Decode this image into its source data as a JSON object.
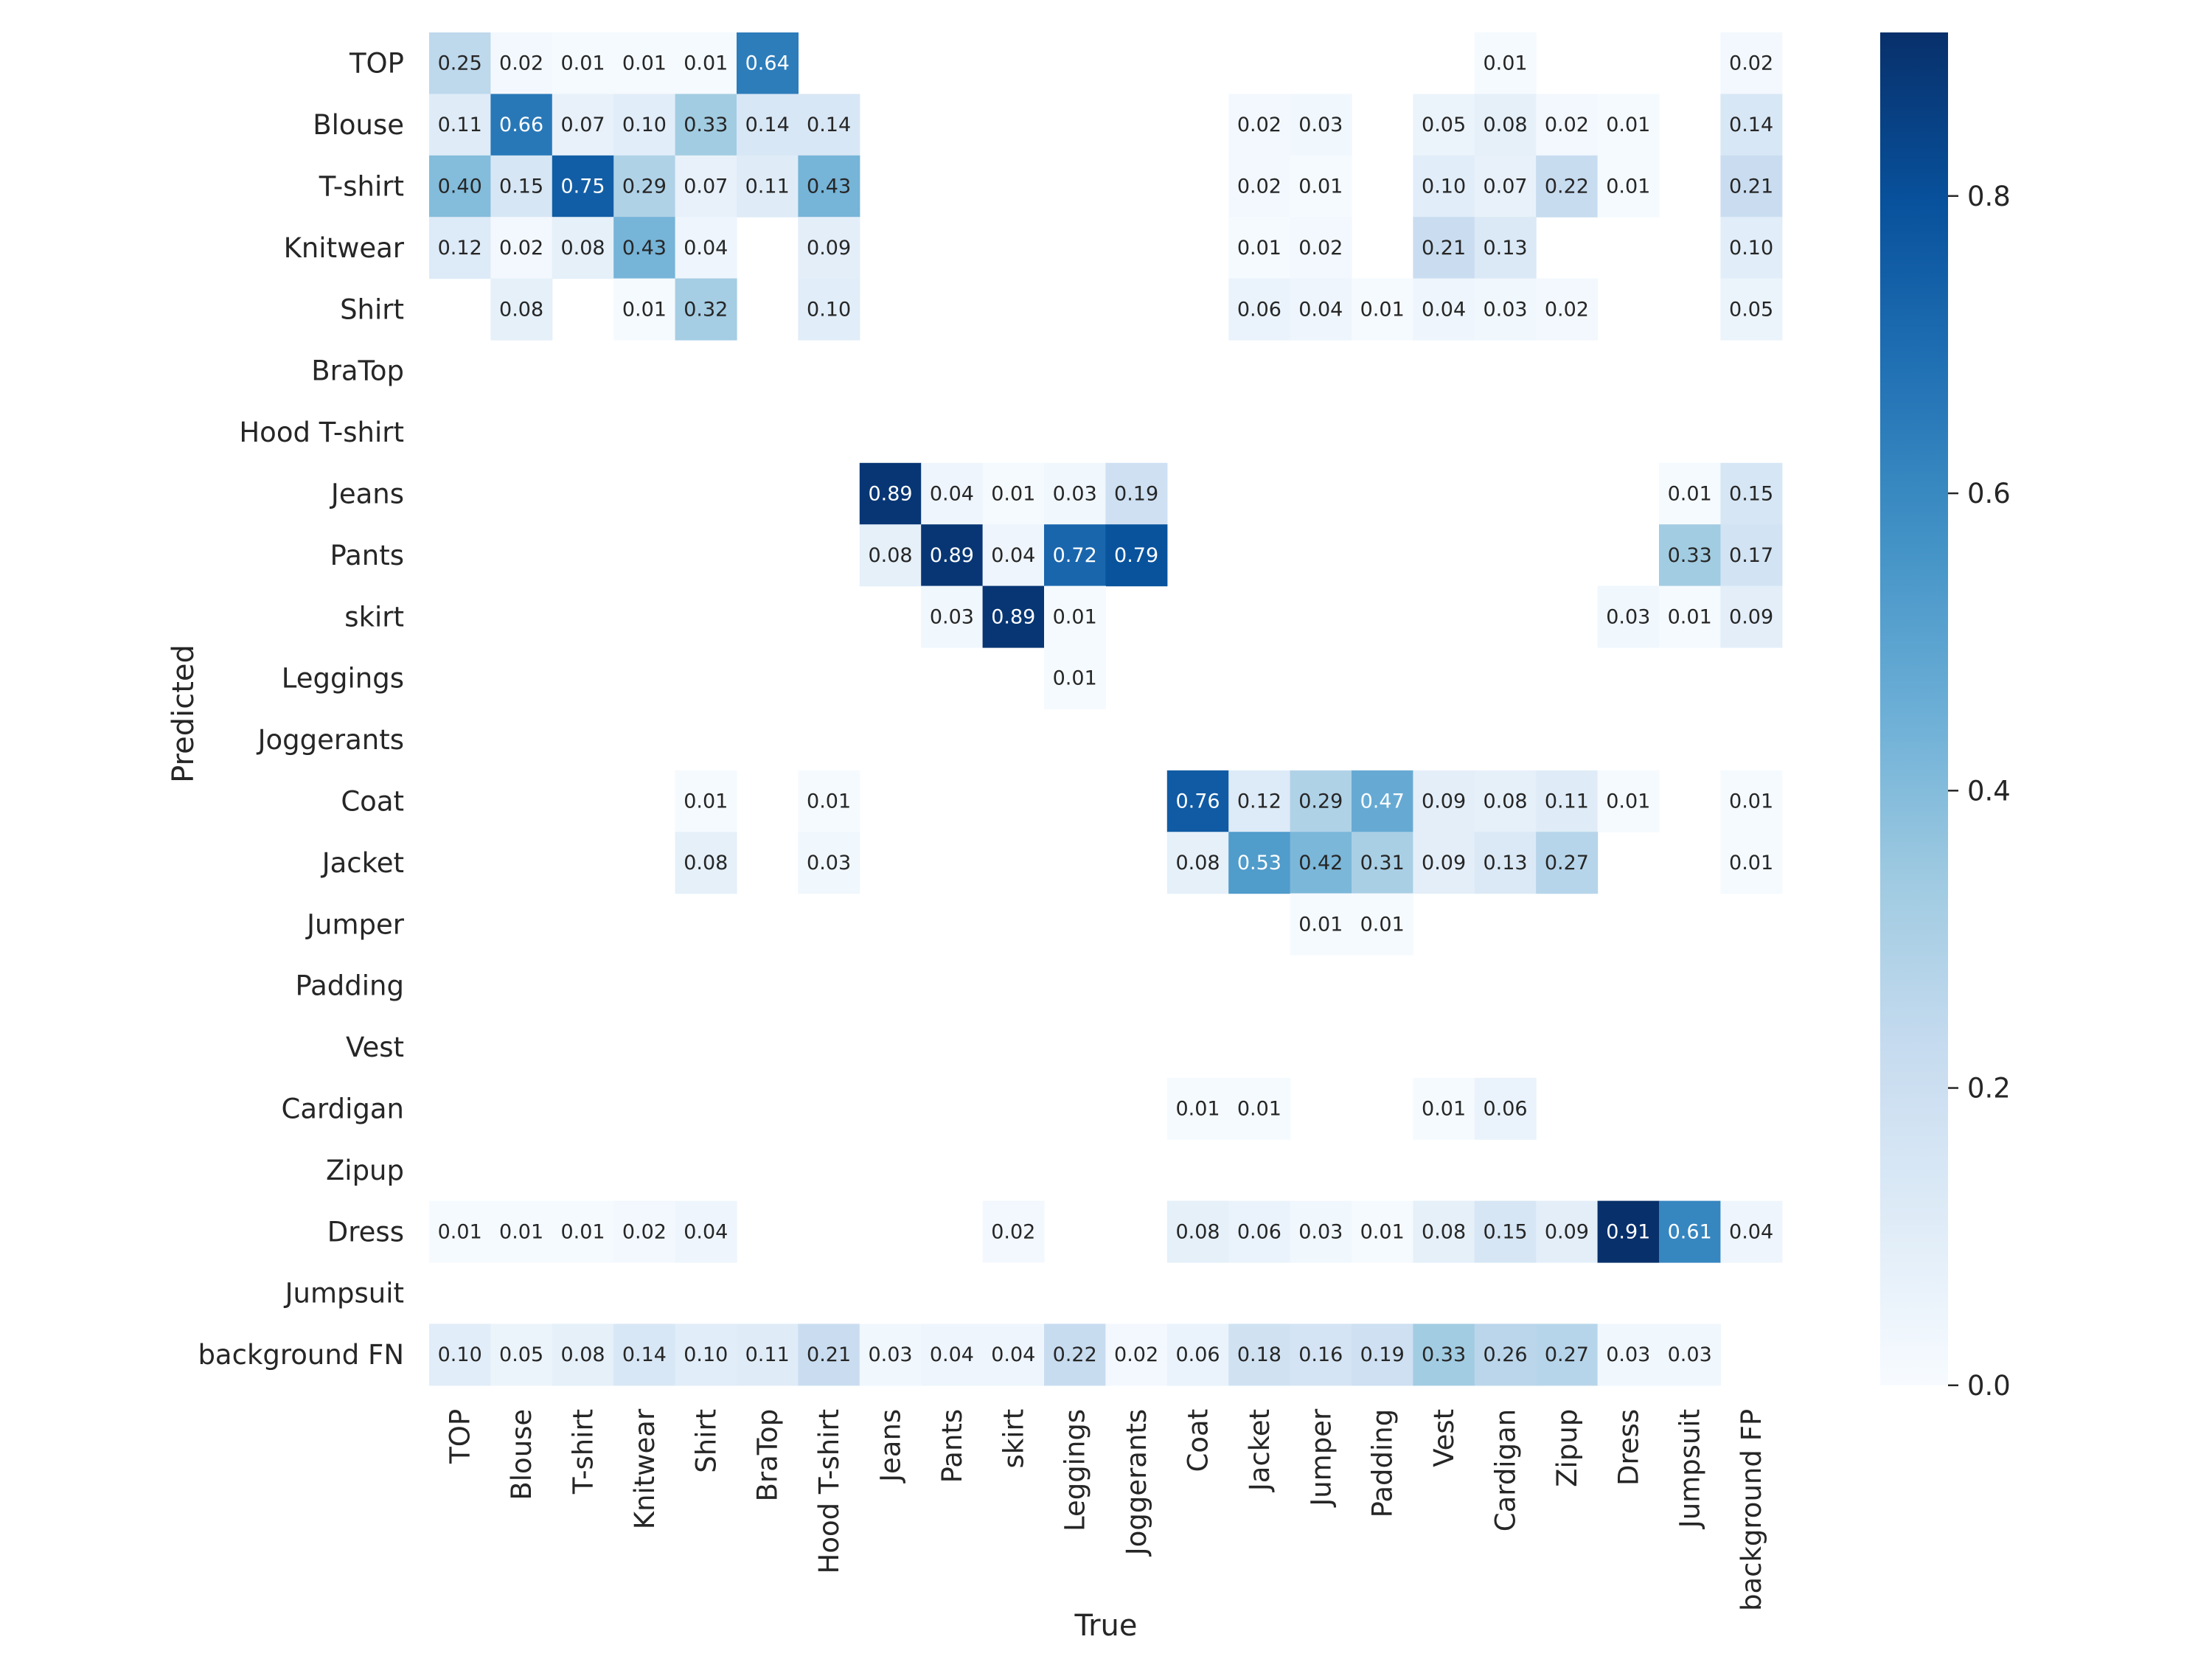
{
  "chart_data": {
    "type": "heatmap",
    "title": "",
    "xlabel": "True",
    "ylabel": "Predicted",
    "x_categories": [
      "TOP",
      "Blouse",
      "T-shirt",
      "Knitwear",
      "Shirt",
      "BraTop",
      "Hood T-shirt",
      "Jeans",
      "Pants",
      "skirt",
      "Leggings",
      "Joggerants",
      "Coat",
      "Jacket",
      "Jumper",
      "Padding",
      "Vest",
      "Cardigan",
      "Zipup",
      "Dress",
      "Jumpsuit",
      "background FP"
    ],
    "y_categories": [
      "TOP",
      "Blouse",
      "T-shirt",
      "Knitwear",
      "Shirt",
      "BraTop",
      "Hood T-shirt",
      "Jeans",
      "Pants",
      "skirt",
      "Leggings",
      "Joggerants",
      "Coat",
      "Jacket",
      "Jumper",
      "Padding",
      "Vest",
      "Cardigan",
      "Zipup",
      "Dress",
      "Jumpsuit",
      "background FN"
    ],
    "values": [
      [
        0.25,
        0.02,
        0.01,
        0.01,
        0.01,
        0.64,
        null,
        null,
        null,
        null,
        null,
        null,
        null,
        null,
        null,
        null,
        null,
        0.01,
        null,
        null,
        null,
        0.02
      ],
      [
        0.11,
        0.66,
        0.07,
        0.1,
        0.33,
        0.14,
        0.14,
        null,
        null,
        null,
        null,
        null,
        null,
        0.02,
        0.03,
        null,
        0.05,
        0.08,
        0.02,
        0.01,
        null,
        0.14
      ],
      [
        0.4,
        0.15,
        0.75,
        0.29,
        0.07,
        0.11,
        0.43,
        null,
        null,
        null,
        null,
        null,
        null,
        0.02,
        0.01,
        null,
        0.1,
        0.07,
        0.22,
        0.01,
        null,
        0.21
      ],
      [
        0.12,
        0.02,
        0.08,
        0.43,
        0.04,
        null,
        0.09,
        null,
        null,
        null,
        null,
        null,
        null,
        0.01,
        0.02,
        null,
        0.21,
        0.13,
        null,
        null,
        null,
        0.1
      ],
      [
        null,
        0.08,
        null,
        0.01,
        0.32,
        null,
        0.1,
        null,
        null,
        null,
        null,
        null,
        null,
        0.06,
        0.04,
        0.01,
        0.04,
        0.03,
        0.02,
        null,
        null,
        0.05
      ],
      [
        null,
        null,
        null,
        null,
        null,
        null,
        null,
        null,
        null,
        null,
        null,
        null,
        null,
        null,
        null,
        null,
        null,
        null,
        null,
        null,
        null,
        null
      ],
      [
        null,
        null,
        null,
        null,
        null,
        null,
        null,
        null,
        null,
        null,
        null,
        null,
        null,
        null,
        null,
        null,
        null,
        null,
        null,
        null,
        null,
        null
      ],
      [
        null,
        null,
        null,
        null,
        null,
        null,
        null,
        0.89,
        0.04,
        0.01,
        0.03,
        0.19,
        null,
        null,
        null,
        null,
        null,
        null,
        null,
        null,
        0.01,
        0.15
      ],
      [
        null,
        null,
        null,
        null,
        null,
        null,
        null,
        0.08,
        0.89,
        0.04,
        0.72,
        0.79,
        null,
        null,
        null,
        null,
        null,
        null,
        null,
        null,
        0.33,
        0.17
      ],
      [
        null,
        null,
        null,
        null,
        null,
        null,
        null,
        null,
        0.03,
        0.89,
        0.01,
        null,
        null,
        null,
        null,
        null,
        null,
        null,
        null,
        0.03,
        0.01,
        0.09
      ],
      [
        null,
        null,
        null,
        null,
        null,
        null,
        null,
        null,
        null,
        null,
        0.01,
        null,
        null,
        null,
        null,
        null,
        null,
        null,
        null,
        null,
        null,
        null
      ],
      [
        null,
        null,
        null,
        null,
        null,
        null,
        null,
        null,
        null,
        null,
        null,
        null,
        null,
        null,
        null,
        null,
        null,
        null,
        null,
        null,
        null,
        null
      ],
      [
        null,
        null,
        null,
        null,
        0.01,
        null,
        0.01,
        null,
        null,
        null,
        null,
        null,
        0.76,
        0.12,
        0.29,
        0.47,
        0.09,
        0.08,
        0.11,
        0.01,
        null,
        0.01
      ],
      [
        null,
        null,
        null,
        null,
        0.08,
        null,
        0.03,
        null,
        null,
        null,
        null,
        null,
        0.08,
        0.53,
        0.42,
        0.31,
        0.09,
        0.13,
        0.27,
        null,
        null,
        0.01
      ],
      [
        null,
        null,
        null,
        null,
        null,
        null,
        null,
        null,
        null,
        null,
        null,
        null,
        null,
        null,
        0.01,
        0.01,
        null,
        null,
        null,
        null,
        null,
        null
      ],
      [
        null,
        null,
        null,
        null,
        null,
        null,
        null,
        null,
        null,
        null,
        null,
        null,
        null,
        null,
        null,
        null,
        null,
        null,
        null,
        null,
        null,
        null
      ],
      [
        null,
        null,
        null,
        null,
        null,
        null,
        null,
        null,
        null,
        null,
        null,
        null,
        null,
        null,
        null,
        null,
        null,
        null,
        null,
        null,
        null,
        null
      ],
      [
        null,
        null,
        null,
        null,
        null,
        null,
        null,
        null,
        null,
        null,
        null,
        null,
        0.01,
        0.01,
        null,
        null,
        0.01,
        0.06,
        null,
        null,
        null,
        null
      ],
      [
        null,
        null,
        null,
        null,
        null,
        null,
        null,
        null,
        null,
        null,
        null,
        null,
        null,
        null,
        null,
        null,
        null,
        null,
        null,
        null,
        null,
        null
      ],
      [
        0.01,
        0.01,
        0.01,
        0.02,
        0.04,
        null,
        null,
        null,
        null,
        0.02,
        null,
        null,
        0.08,
        0.06,
        0.03,
        0.01,
        0.08,
        0.15,
        0.09,
        0.91,
        0.61,
        0.04
      ],
      [
        null,
        null,
        null,
        null,
        null,
        null,
        null,
        null,
        null,
        null,
        null,
        null,
        null,
        null,
        null,
        null,
        null,
        null,
        null,
        null,
        null,
        null
      ],
      [
        0.1,
        0.05,
        0.08,
        0.14,
        0.1,
        0.11,
        0.21,
        0.03,
        0.04,
        0.04,
        0.22,
        0.02,
        0.06,
        0.18,
        0.16,
        0.19,
        0.33,
        0.26,
        0.27,
        0.03,
        0.03,
        null
      ]
    ],
    "colormap": "Blues",
    "colorbar": {
      "vmin": 0.0,
      "vmax": 0.91,
      "ticks": [
        "0.0",
        "0.2",
        "0.4",
        "0.6",
        "0.8"
      ]
    },
    "grid": false,
    "legend": "none"
  }
}
